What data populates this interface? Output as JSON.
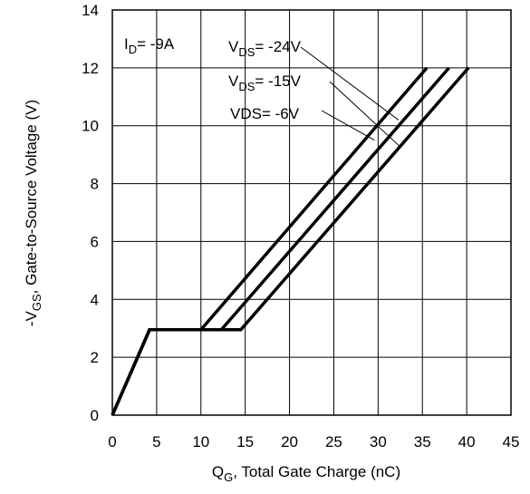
{
  "chart_data": {
    "type": "line",
    "title": "",
    "xlabel": {
      "main": "Q",
      "sub": "G",
      "rest": ",  Total Gate Charge (nC)"
    },
    "ylabel": {
      "prefix": "-V",
      "sub": "GS",
      "rest": ", Gate-to-Source Voltage (V)"
    },
    "xlim": [
      0,
      45
    ],
    "ylim": [
      0,
      14
    ],
    "xticks": [
      0,
      5,
      10,
      15,
      20,
      25,
      30,
      35,
      40,
      45
    ],
    "yticks": [
      0,
      2,
      4,
      6,
      8,
      10,
      12,
      14
    ],
    "grid": true,
    "line_color": "#000000",
    "series": [
      {
        "label": "V_DS = -24V",
        "x": [
          0,
          4.2,
          10,
          35.5
        ],
        "y": [
          0,
          2.95,
          2.95,
          12
        ]
      },
      {
        "label": "V_DS = -15V",
        "x": [
          0,
          4.2,
          12.3,
          38
        ],
        "y": [
          0,
          2.95,
          2.95,
          12
        ]
      },
      {
        "label": "VDS = -6V",
        "x": [
          0,
          4.2,
          14.5,
          40.2
        ],
        "y": [
          0,
          2.95,
          2.95,
          12
        ]
      }
    ],
    "annotations": [
      {
        "id": "id",
        "main": "I",
        "sub": "D",
        "rest": "= -9A"
      },
      {
        "id": "vds24",
        "main": "V",
        "sub": "DS",
        "rest": "= -24V"
      },
      {
        "id": "vds15",
        "main": "V",
        "sub": "DS",
        "rest": "= -15V"
      },
      {
        "id": "vds6",
        "main": "VDS= -6V",
        "sub": "",
        "rest": ""
      }
    ]
  }
}
